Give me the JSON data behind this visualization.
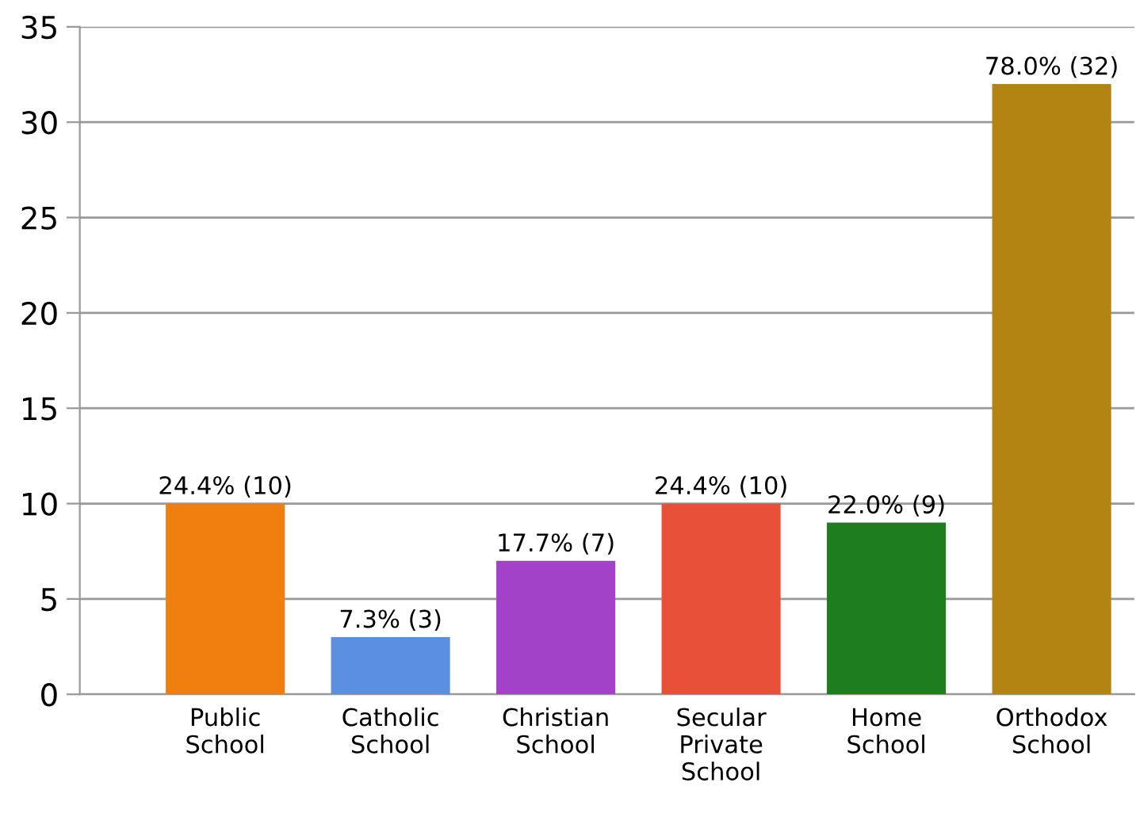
{
  "chart_data": {
    "type": "bar",
    "categories": [
      "Public\nSchool",
      "Catholic\nSchool",
      "Christian\nSchool",
      "Secular\nPrivate\nSchool",
      "Home\nSchool",
      "Orthodox\nSchool"
    ],
    "values": [
      10,
      3,
      7,
      10,
      9,
      32
    ],
    "colors": [
      "#f07f10",
      "#5b8fe0",
      "#a242c8",
      "#e8503a",
      "#1e7e1e",
      "#b38412"
    ],
    "value_labels": [
      "24.4% (10)",
      "7.3% (3)",
      "17.7% (7)",
      "24.4% (10)",
      "22.0% (9)",
      "78.0% (32)"
    ],
    "ylim": [
      0,
      35
    ],
    "yticks": [
      0,
      5,
      10,
      15,
      20,
      25,
      30,
      35
    ],
    "grid": "y"
  }
}
